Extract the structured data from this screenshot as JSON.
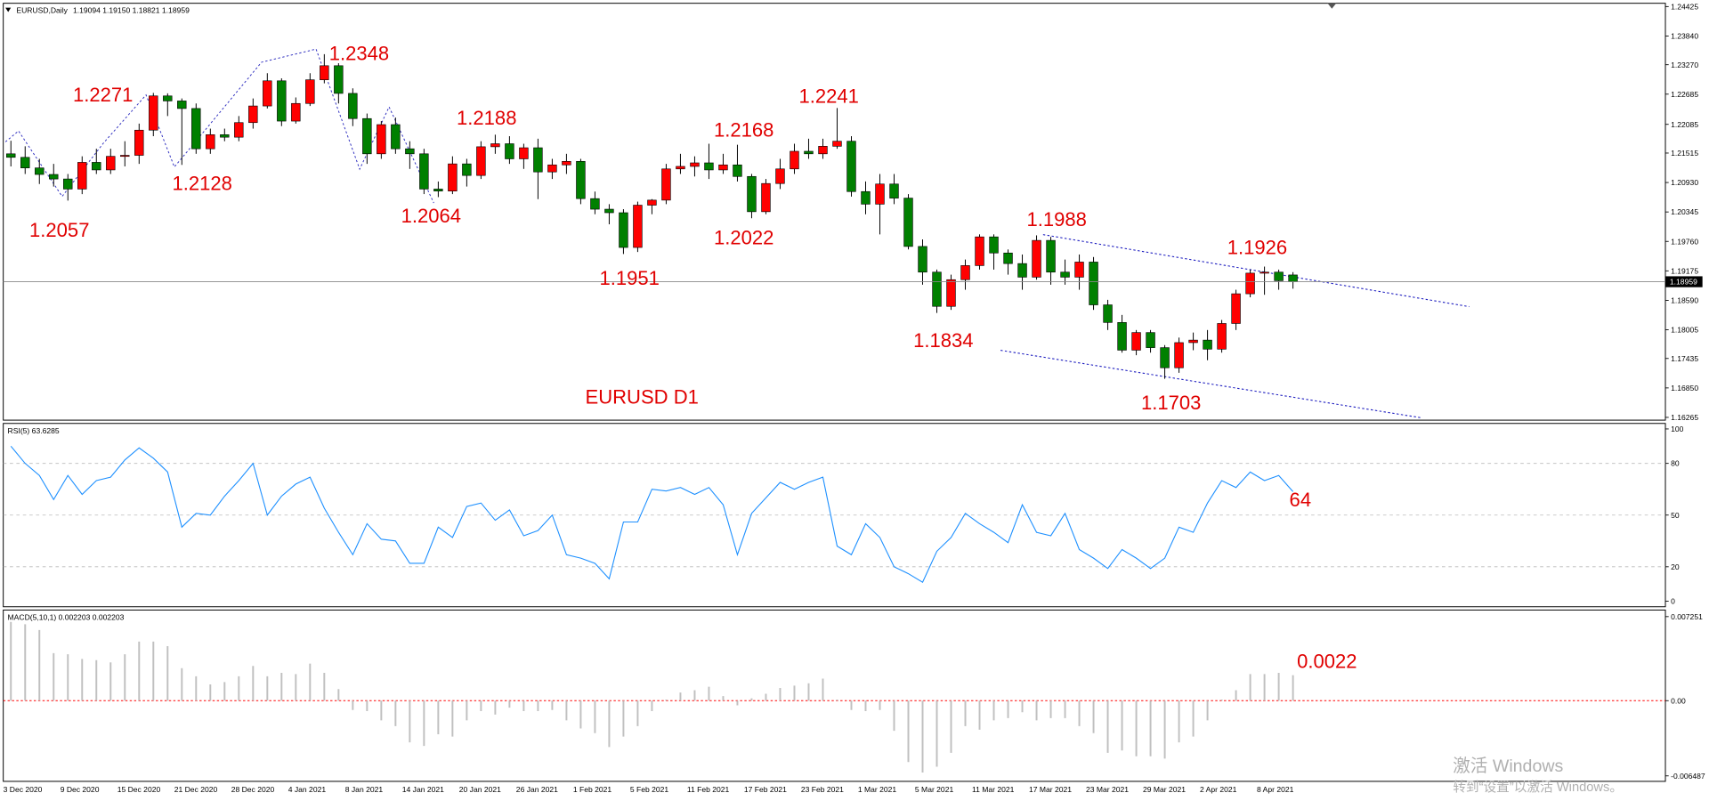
{
  "header": {
    "symbol": "EURUSD,Daily",
    "ohlc": [
      "1.19094",
      "1.19150",
      "1.18821",
      "1.18959"
    ]
  },
  "watermark": {
    "line1": "激活 Windows",
    "line2": "转到“设置”以激活 Windows。"
  },
  "chart_data": [
    {
      "type": "candlestick",
      "title": "EURUSD D1",
      "categories": [
        "3 Dec 2020",
        null,
        null,
        null,
        "9 Dec 2020",
        null,
        null,
        null,
        "15 Dec 2020",
        null,
        null,
        null,
        "21 Dec 2020",
        null,
        null,
        null,
        "28 Dec 2020",
        null,
        null,
        null,
        "4 Jan 2021",
        null,
        null,
        null,
        "8 Jan 2021",
        null,
        null,
        null,
        "14 Jan 2021",
        null,
        null,
        null,
        "20 Jan 2021",
        null,
        null,
        null,
        "26 Jan 2021",
        null,
        null,
        null,
        "1 Feb 2021",
        null,
        null,
        null,
        "5 Feb 2021",
        null,
        null,
        null,
        "11 Feb 2021",
        null,
        null,
        null,
        "17 Feb 2021",
        null,
        null,
        null,
        "23 Feb 2021",
        null,
        null,
        null,
        "1 Mar 2021",
        null,
        null,
        null,
        "5 Mar 2021",
        null,
        null,
        null,
        "11 Mar 2021",
        null,
        null,
        null,
        "17 Mar 2021",
        null,
        null,
        null,
        "23 Mar 2021",
        null,
        null,
        null,
        "29 Mar 2021",
        null,
        null,
        null,
        "2 Apr 2021",
        null,
        null,
        null,
        "8 Apr 2021",
        null,
        null
      ],
      "open": [
        1.215,
        1.2143,
        1.2122,
        1.2109,
        1.21,
        1.208,
        1.2133,
        1.2118,
        1.2145,
        1.2147,
        1.2197,
        1.2265,
        1.2255,
        1.224,
        1.216,
        1.2188,
        1.2183,
        1.2212,
        1.2245,
        1.2295,
        1.2215,
        1.225,
        1.2297,
        1.2325,
        1.227,
        1.222,
        1.215,
        1.2208,
        1.216,
        1.215,
        1.208,
        1.2076,
        1.213,
        1.2107,
        1.2164,
        1.217,
        1.214,
        1.2162,
        1.2114,
        1.2128,
        1.2135,
        1.2061,
        1.204,
        1.2033,
        1.1964,
        1.2048,
        1.2058,
        1.212,
        1.2125,
        1.2132,
        1.2118,
        1.2128,
        1.2105,
        1.2035,
        1.2091,
        1.212,
        1.2155,
        1.215,
        1.2165,
        1.2175,
        1.2075,
        1.205,
        1.209,
        1.2062,
        1.1966,
        1.1915,
        1.1847,
        1.19,
        1.1928,
        1.1985,
        1.1953,
        1.1932,
        1.1905,
        1.1978,
        1.1915,
        1.1905,
        1.1935,
        1.185,
        1.1815,
        1.176,
        1.1795,
        1.1765,
        1.1725,
        1.1775,
        1.178,
        1.1762,
        1.1813,
        1.1872,
        1.1913,
        1.1915,
        1.19094
      ],
      "high": [
        1.2176,
        1.2165,
        1.214,
        1.213,
        1.211,
        1.2145,
        1.216,
        1.216,
        1.2175,
        1.221,
        1.2271,
        1.227,
        1.226,
        1.225,
        1.22,
        1.22,
        1.2225,
        1.226,
        1.231,
        1.23,
        1.2262,
        1.231,
        1.2348,
        1.233,
        1.228,
        1.223,
        1.2215,
        1.2222,
        1.2175,
        1.216,
        1.2095,
        1.2145,
        1.214,
        1.2175,
        1.2188,
        1.2185,
        1.217,
        1.218,
        1.214,
        1.215,
        1.214,
        1.2075,
        1.205,
        1.204,
        1.2055,
        1.206,
        1.213,
        1.215,
        1.2145,
        1.217,
        1.215,
        1.2168,
        1.211,
        1.21,
        1.214,
        1.217,
        1.218,
        1.218,
        1.2241,
        1.2185,
        1.2095,
        1.211,
        1.211,
        1.207,
        1.198,
        1.192,
        1.191,
        1.194,
        1.199,
        1.199,
        1.196,
        1.195,
        1.1988,
        1.1985,
        1.194,
        1.195,
        1.1945,
        1.186,
        1.183,
        1.18,
        1.18,
        1.177,
        1.1785,
        1.1795,
        1.18,
        1.182,
        1.188,
        1.192,
        1.1926,
        1.192,
        1.1915
      ],
      "low": [
        1.2125,
        1.211,
        1.209,
        1.2085,
        1.2057,
        1.207,
        1.211,
        1.211,
        1.2125,
        1.213,
        1.2185,
        1.2225,
        1.2128,
        1.215,
        1.215,
        1.2175,
        1.2175,
        1.22,
        1.224,
        1.2205,
        1.221,
        1.2245,
        1.229,
        1.225,
        1.2205,
        1.213,
        1.214,
        1.215,
        1.212,
        1.207,
        1.2064,
        1.207,
        1.2085,
        1.21,
        1.215,
        1.213,
        1.212,
        1.206,
        1.21,
        1.211,
        1.205,
        1.203,
        1.201,
        1.1951,
        1.1955,
        1.203,
        1.205,
        1.211,
        1.2105,
        1.21,
        1.211,
        1.2095,
        1.2022,
        1.203,
        1.208,
        1.211,
        1.214,
        1.214,
        1.216,
        1.2065,
        1.203,
        1.199,
        1.205,
        1.196,
        1.189,
        1.1834,
        1.184,
        1.188,
        1.192,
        1.192,
        1.191,
        1.188,
        1.19,
        1.189,
        1.189,
        1.188,
        1.184,
        1.18,
        1.1755,
        1.175,
        1.1755,
        1.1703,
        1.1715,
        1.176,
        1.174,
        1.1755,
        1.18,
        1.1865,
        1.187,
        1.188,
        1.18821
      ],
      "close": [
        1.2143,
        1.2122,
        1.2109,
        1.21,
        1.208,
        1.2133,
        1.2118,
        1.2145,
        1.2147,
        1.2197,
        1.2265,
        1.2255,
        1.224,
        1.216,
        1.2188,
        1.2183,
        1.2212,
        1.2245,
        1.2295,
        1.2215,
        1.225,
        1.2297,
        1.2325,
        1.227,
        1.222,
        1.215,
        1.2208,
        1.216,
        1.215,
        1.208,
        1.2076,
        1.213,
        1.2107,
        1.2164,
        1.217,
        1.214,
        1.2162,
        1.2114,
        1.2128,
        1.2135,
        1.2061,
        1.204,
        1.2033,
        1.1964,
        1.2048,
        1.2058,
        1.212,
        1.2125,
        1.2132,
        1.2118,
        1.2128,
        1.2105,
        1.2035,
        1.2091,
        1.212,
        1.2155,
        1.215,
        1.2165,
        1.2175,
        1.2075,
        1.205,
        1.209,
        1.2062,
        1.1966,
        1.1915,
        1.1847,
        1.19,
        1.1928,
        1.1985,
        1.1953,
        1.1932,
        1.1905,
        1.1978,
        1.1915,
        1.1905,
        1.1935,
        1.185,
        1.1815,
        1.176,
        1.1795,
        1.1765,
        1.1725,
        1.1775,
        1.178,
        1.1762,
        1.1813,
        1.1872,
        1.1913,
        1.1915,
        1.1898,
        1.18959
      ],
      "up_color": "#ff0000",
      "down_color": "#008000",
      "ylim": [
        1.1621,
        1.2449
      ],
      "yticks": [
        1.16265,
        {
          "value": 1.1685,
          "label": "1.16850"
        },
        1.17435,
        1.18005,
        {
          "value": 1.1859,
          "label": "1.18590"
        },
        1.19175,
        {
          "value": 1.1976,
          "label": "1.19760"
        },
        1.20345,
        {
          "value": 1.2093,
          "label": "1.20930"
        },
        1.21515,
        1.22085,
        1.22685,
        {
          "value": 1.2327,
          "label": "1.23270"
        },
        {
          "value": 1.2384,
          "label": "1.23840"
        },
        1.24425
      ],
      "annotations": [
        1.2057,
        1.2271,
        1.2128,
        1.2348,
        1.2064,
        1.2188,
        1.1951,
        1.2168,
        1.2022,
        1.2241,
        1.1834,
        1.1988,
        1.1926,
        1.1703
      ]
    },
    {
      "type": "line",
      "title": "RSI(5)",
      "values": [
        90,
        80,
        73,
        59,
        73,
        62,
        70,
        72,
        82,
        89,
        83,
        75,
        43,
        51,
        50,
        61,
        70,
        80,
        50,
        61,
        68,
        72,
        54,
        40,
        27,
        45,
        36,
        35,
        22,
        22,
        43,
        37,
        55,
        57,
        47,
        53,
        38,
        41,
        50,
        27,
        25,
        22,
        13,
        46,
        46,
        65,
        64,
        66,
        62,
        66,
        56,
        27,
        51,
        60,
        69,
        65,
        69,
        72,
        32,
        27,
        45,
        37,
        20,
        16,
        11,
        29,
        37,
        51,
        45,
        40,
        34,
        56,
        40,
        38,
        51,
        30,
        25,
        19,
        30,
        25,
        19,
        25,
        43,
        40,
        57,
        70,
        66,
        75,
        70,
        73,
        63.6285
      ],
      "color": "#1e90ff",
      "ylim": [
        -3.2,
        103.2
      ],
      "yticks": [
        0,
        20,
        50,
        80,
        100
      ],
      "levels": [
        20,
        50,
        80
      ],
      "annotation": 64
    },
    {
      "type": "bar",
      "title": "MACD(5,10,1)",
      "values": [
        0.0068,
        0.0066,
        0.0061,
        0.0041,
        0.004,
        0.0036,
        0.0035,
        0.0033,
        0.004,
        0.0051,
        0.0051,
        0.0047,
        0.0028,
        0.0021,
        0.0014,
        0.0016,
        0.0021,
        0.003,
        0.0021,
        0.0024,
        0.0023,
        0.0032,
        0.0024,
        0.001,
        -0.0008,
        -0.0009,
        -0.0017,
        -0.0022,
        -0.0036,
        -0.0039,
        -0.0029,
        -0.0031,
        -0.0017,
        -0.0009,
        -0.0012,
        -0.0006,
        -0.0009,
        -0.0009,
        -0.0008,
        -0.0017,
        -0.0024,
        -0.0028,
        -0.004,
        -0.0031,
        -0.0022,
        -0.0009,
        0.0001,
        0.0007,
        0.0009,
        0.0012,
        0.0004,
        -0.0004,
        0.0002,
        0.0006,
        0.0011,
        0.0013,
        0.0015,
        0.0019,
        0.0001,
        -0.0008,
        -0.0009,
        -0.0008,
        -0.0026,
        -0.0053,
        -0.0062,
        -0.0057,
        -0.0045,
        -0.0022,
        -0.0025,
        -0.0017,
        -0.0015,
        -0.001,
        -0.0017,
        -0.0015,
        -0.0015,
        -0.0022,
        -0.0028,
        -0.0045,
        -0.0043,
        -0.0048,
        -0.0048,
        -0.005,
        -0.0036,
        -0.0031,
        -0.0017,
        0.0001,
        0.0009,
        0.0023,
        0.0023,
        0.0024,
        0.002203
      ],
      "color": "#c0c0c0",
      "zero_line_color": "#ff0000",
      "ylim": [
        -0.00696,
        0.00782
      ],
      "yticks": [
        -0.006487,
        {
          "value": 0,
          "label": "0.00"
        },
        0.007251
      ],
      "annotation": 0.0022
    }
  ]
}
